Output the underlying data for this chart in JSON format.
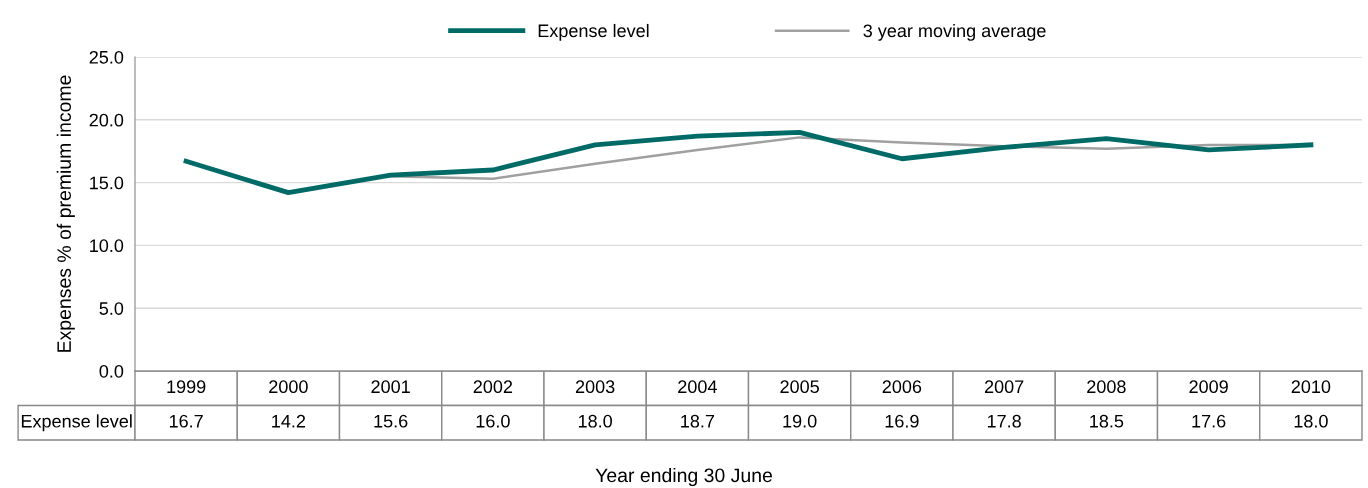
{
  "chart_data": {
    "type": "line",
    "xlabel": "Year ending 30 June",
    "ylabel": "Expenses % of premium income",
    "categories": [
      "1999",
      "2000",
      "2001",
      "2002",
      "2003",
      "2004",
      "2005",
      "2006",
      "2007",
      "2008",
      "2009",
      "2010"
    ],
    "series": [
      {
        "name": "Expense level",
        "color": "#006b66",
        "values": [
          16.7,
          14.2,
          15.6,
          16.0,
          18.0,
          18.7,
          19.0,
          16.9,
          17.8,
          18.5,
          17.6,
          18.0
        ],
        "value_labels": [
          "16.7",
          "14.2",
          "15.6",
          "16.0",
          "18.0",
          "18.7",
          "19.0",
          "16.9",
          "17.8",
          "18.5",
          "17.6",
          "18.0"
        ]
      },
      {
        "name": "3 year moving average",
        "color": "#a0a0a0",
        "values": [
          null,
          null,
          15.5,
          15.3,
          16.5,
          17.6,
          18.6,
          18.2,
          17.9,
          17.7,
          18.0,
          18.0
        ]
      }
    ],
    "ylim": [
      0,
      25
    ],
    "yticks": [
      {
        "value": 0,
        "label": "0.0"
      },
      {
        "value": 5,
        "label": "5.0"
      },
      {
        "value": 10,
        "label": "10.0"
      },
      {
        "value": 15,
        "label": "15.0"
      },
      {
        "value": 20,
        "label": "20.0"
      },
      {
        "value": 25,
        "label": "25.0"
      }
    ],
    "grid": "y",
    "legend": "top",
    "marker": "none",
    "line_style": "solid"
  }
}
